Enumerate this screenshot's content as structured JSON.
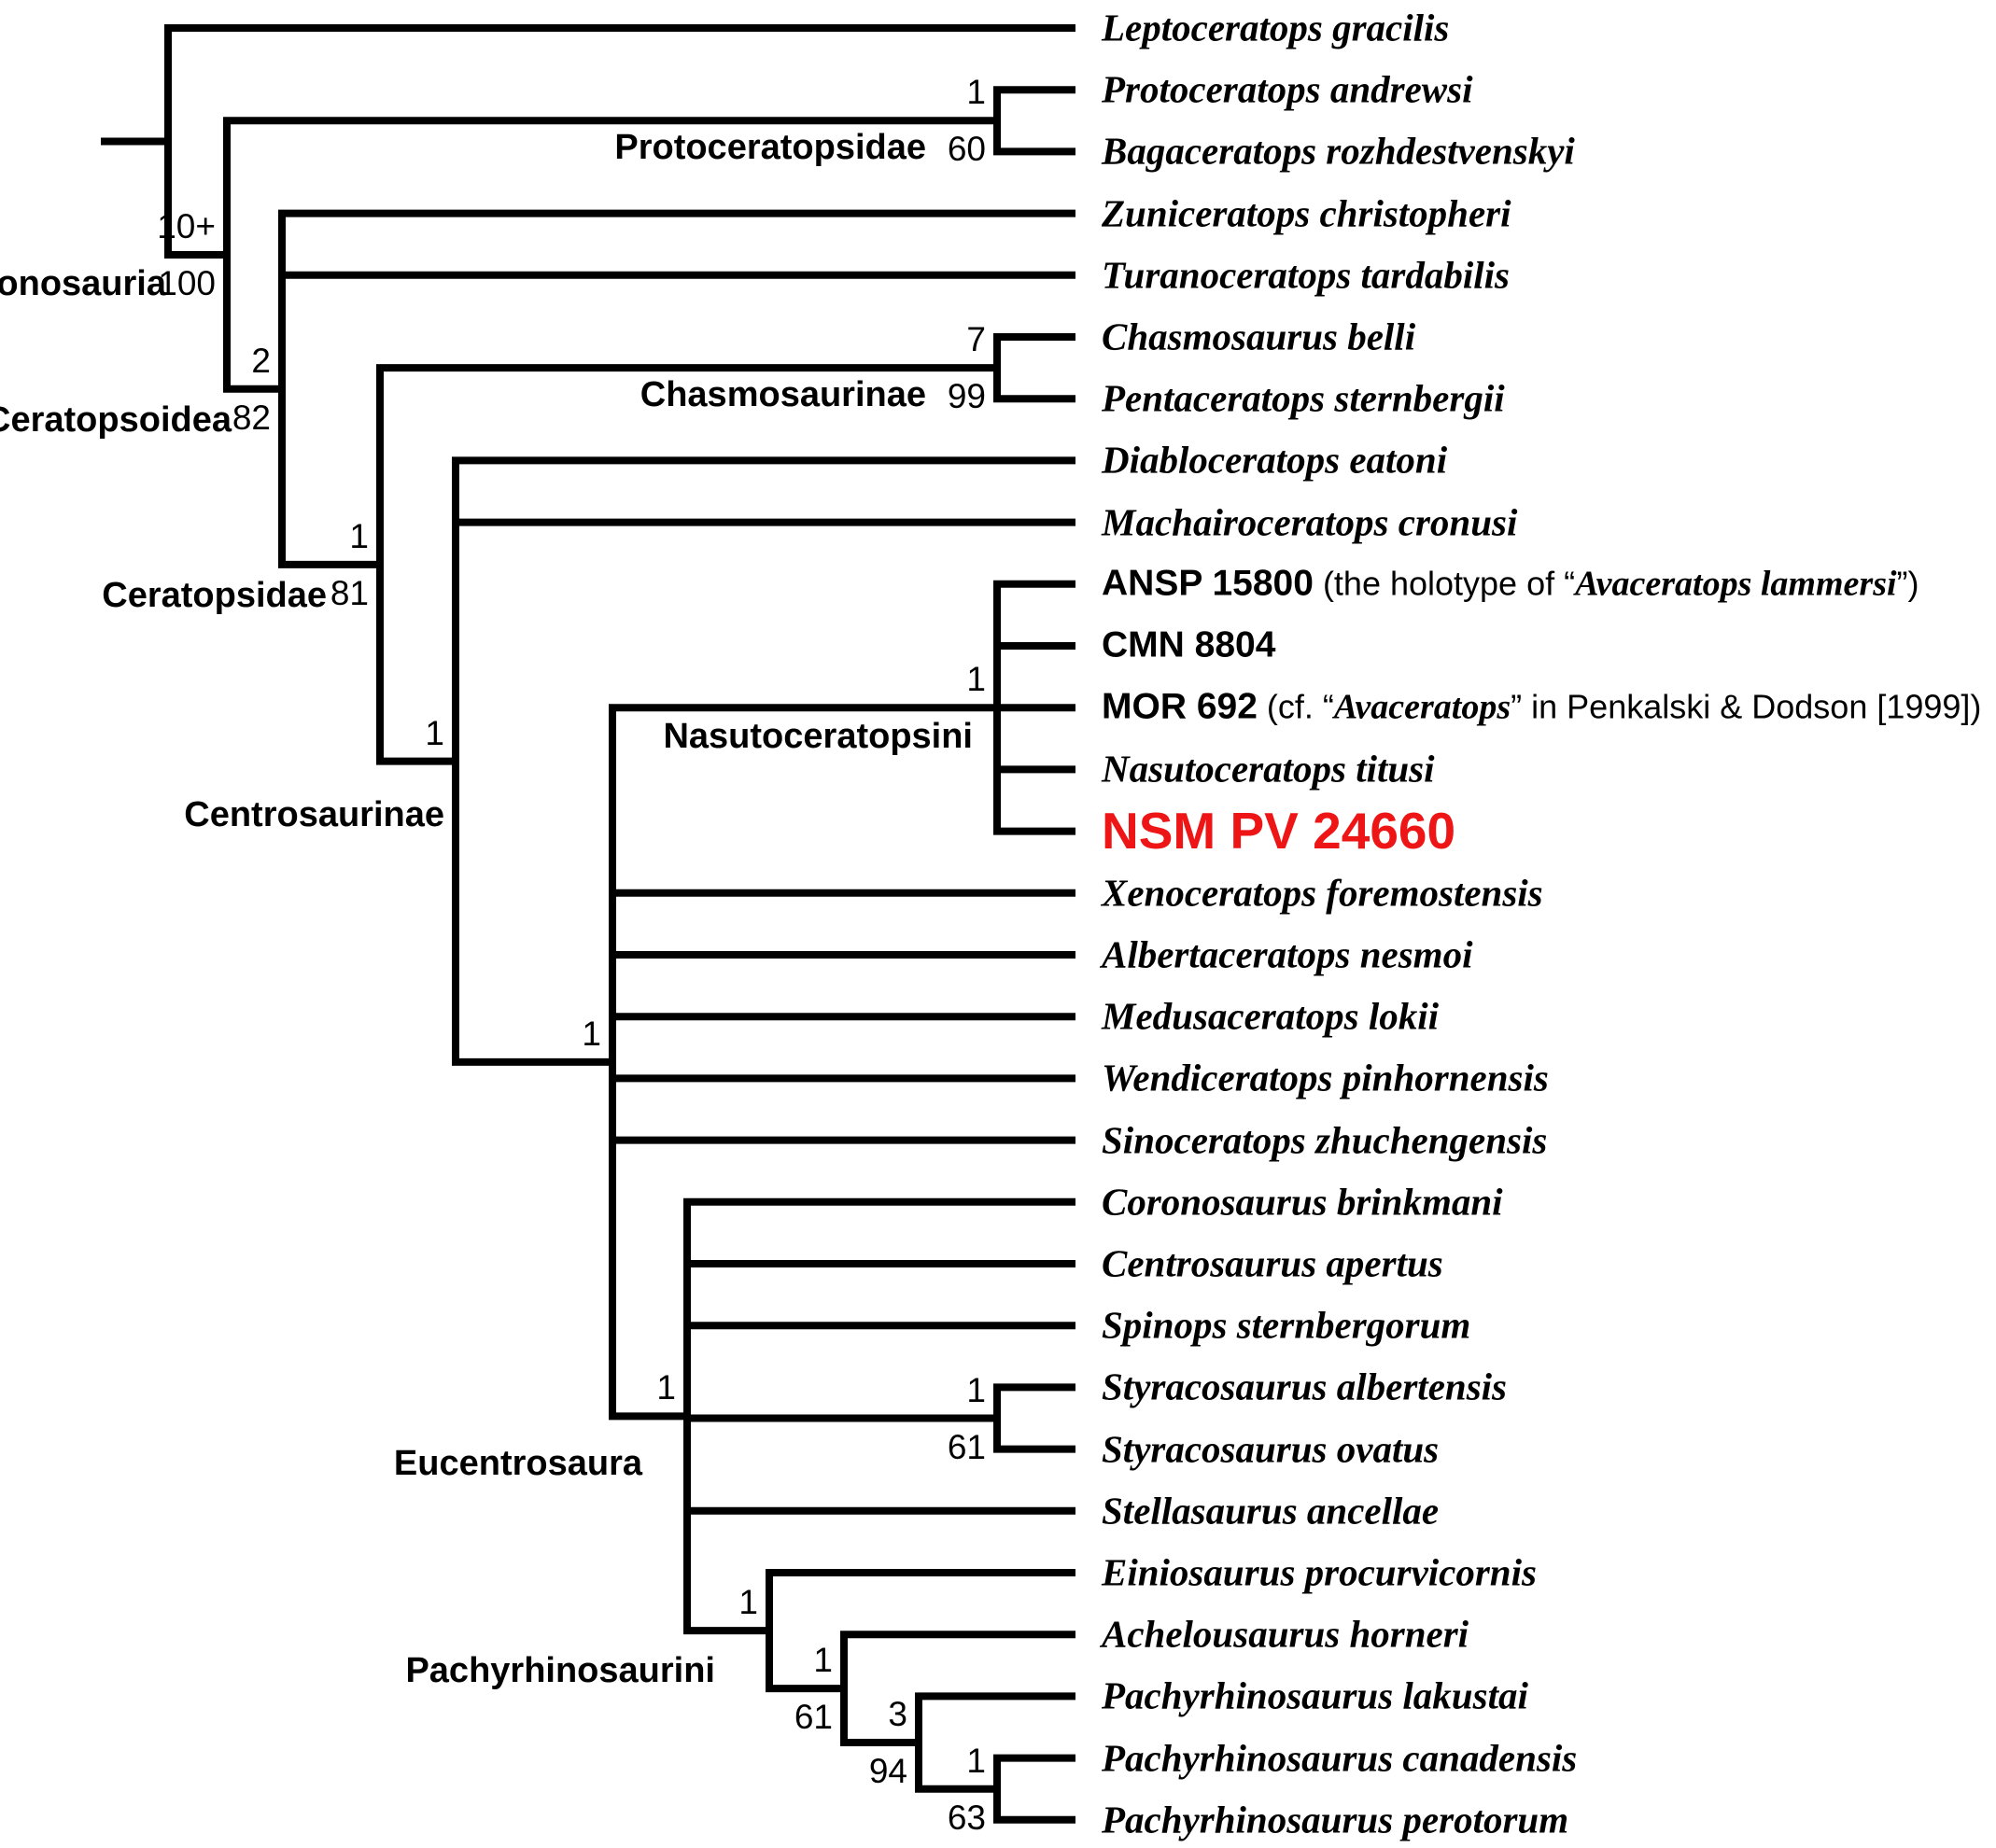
{
  "figure_type": "phylogenetic-cladogram",
  "highlight_color": "#ed1515",
  "line_color": "#000000",
  "background_color": "#ffffff",
  "tips": [
    {
      "label": "Leptoceratops gracilis",
      "style": "species"
    },
    {
      "label": "Protoceratops andrewsi",
      "style": "species"
    },
    {
      "label": "Bagaceratops rozhdestvenskyi",
      "style": "species"
    },
    {
      "label": "Zuniceratops christopheri",
      "style": "species"
    },
    {
      "label": "Turanoceratops tardabilis",
      "style": "species"
    },
    {
      "label": "Chasmosaurus belli",
      "style": "species"
    },
    {
      "label": "Pentaceratops sternbergii",
      "style": "species"
    },
    {
      "label": "Diabloceratops eatoni",
      "style": "species"
    },
    {
      "label": "Machairoceratops cronusi",
      "style": "species"
    },
    {
      "style": "composite",
      "parts": [
        {
          "text": "ANSP 15800",
          "style": "specimen"
        },
        {
          "text": " (the holotype of “",
          "style": "plain"
        },
        {
          "text": "Avaceratops lammersi",
          "style": "inline-species"
        },
        {
          "text": "”)",
          "style": "plain"
        }
      ]
    },
    {
      "label": "CMN 8804",
      "style": "specimen"
    },
    {
      "style": "composite",
      "parts": [
        {
          "text": "MOR 692",
          "style": "specimen"
        },
        {
          "text": " (cf. “",
          "style": "plain"
        },
        {
          "text": "Avaceratops",
          "style": "inline-species"
        },
        {
          "text": "” in Penkalski & Dodson [1999])",
          "style": "plain"
        }
      ]
    },
    {
      "label": "Nasutoceratops titusi",
      "style": "species"
    },
    {
      "label": "NSM PV 24660",
      "style": "highlight"
    },
    {
      "label": "Xenoceratops foremostensis",
      "style": "species"
    },
    {
      "label": "Albertaceratops nesmoi",
      "style": "species"
    },
    {
      "label": "Medusaceratops lokii",
      "style": "species"
    },
    {
      "label": "Wendiceratops pinhornensis",
      "style": "species"
    },
    {
      "label": "Sinoceratops zhuchengensis",
      "style": "species"
    },
    {
      "label": "Coronosaurus brinkmani",
      "style": "species"
    },
    {
      "label": "Centrosaurus apertus",
      "style": "species"
    },
    {
      "label": "Spinops sternbergorum",
      "style": "species"
    },
    {
      "label": "Styracosaurus albertensis",
      "style": "species"
    },
    {
      "label": "Styracosaurus ovatus",
      "style": "species"
    },
    {
      "label": "Stellasaurus ancellae",
      "style": "species"
    },
    {
      "label": "Einiosaurus procurvicornis",
      "style": "species"
    },
    {
      "label": "Achelousaurus horneri",
      "style": "species"
    },
    {
      "label": "Pachyrhinosaurus lakustai",
      "style": "species"
    },
    {
      "label": "Pachyrhinosaurus canadensis",
      "style": "species"
    },
    {
      "label": "Pachyrhinosaurus perotorum",
      "style": "species"
    }
  ],
  "tree": {
    "id": "root",
    "children": [
      {
        "tip": 0
      },
      {
        "id": "coronosauria",
        "clade": "Coronosauria",
        "above": "10+",
        "below": "100",
        "children": [
          {
            "id": "protoceratopsidae",
            "clade": "Protoceratopsidae",
            "above": "1",
            "below": "60",
            "children": [
              {
                "tip": 1
              },
              {
                "tip": 2
              }
            ]
          },
          {
            "id": "ceratopsoidea",
            "clade": "Ceratopsoidea",
            "above": "2",
            "below": "82",
            "children": [
              {
                "tip": 3
              },
              {
                "tip": 4
              },
              {
                "id": "ceratopsidae",
                "clade": "Ceratopsidae",
                "above": "1",
                "below": "81",
                "children": [
                  {
                    "id": "chasmosaurinae",
                    "clade": "Chasmosaurinae",
                    "above": "7",
                    "below": "99",
                    "children": [
                      {
                        "tip": 5
                      },
                      {
                        "tip": 6
                      }
                    ]
                  },
                  {
                    "id": "centrosaurinae",
                    "clade": "Centrosaurinae",
                    "above": "1",
                    "children": [
                      {
                        "tip": 7
                      },
                      {
                        "tip": 8
                      },
                      {
                        "id": "centrosaurinae-core",
                        "above": "1",
                        "children": [
                          {
                            "id": "nasutoceratopsini",
                            "clade": "Nasutoceratopsini",
                            "above": "1",
                            "children": [
                              {
                                "tip": 9
                              },
                              {
                                "tip": 10
                              },
                              {
                                "tip": 11
                              },
                              {
                                "tip": 12
                              },
                              {
                                "tip": 13
                              }
                            ]
                          },
                          {
                            "tip": 14
                          },
                          {
                            "tip": 15
                          },
                          {
                            "tip": 16
                          },
                          {
                            "tip": 17
                          },
                          {
                            "tip": 18
                          },
                          {
                            "id": "eucentrosaura",
                            "clade": "Eucentrosaura",
                            "above": "1",
                            "children": [
                              {
                                "tip": 19
                              },
                              {
                                "tip": 20
                              },
                              {
                                "tip": 21
                              },
                              {
                                "id": "styracosaurus-clade",
                                "above": "1",
                                "below": "61",
                                "children": [
                                  {
                                    "tip": 22
                                  },
                                  {
                                    "tip": 23
                                  }
                                ]
                              },
                              {
                                "tip": 24
                              },
                              {
                                "id": "pachyrhinosaurini",
                                "clade": "Pachyrhinosaurini",
                                "above": "1",
                                "children": [
                                  {
                                    "tip": 25
                                  },
                                  {
                                    "id": "achelousaurus-pachyrhinosaurus-clade",
                                    "above": "1",
                                    "below": "61",
                                    "children": [
                                      {
                                        "tip": 26
                                      },
                                      {
                                        "id": "pachyrhinosaurus-clade",
                                        "above": "3",
                                        "below": "94",
                                        "children": [
                                          {
                                            "tip": 27
                                          },
                                          {
                                            "id": "pachyrhinosaurus-crown-clade",
                                            "above": "1",
                                            "below": "63",
                                            "children": [
                                              {
                                                "tip": 28
                                              },
                                              {
                                                "tip": 29
                                              }
                                            ]
                                          }
                                        ]
                                      }
                                    ]
                                  }
                                ]
                              }
                            ]
                          }
                        ]
                      }
                    ]
                  }
                ]
              }
            ]
          }
        ]
      }
    ]
  }
}
